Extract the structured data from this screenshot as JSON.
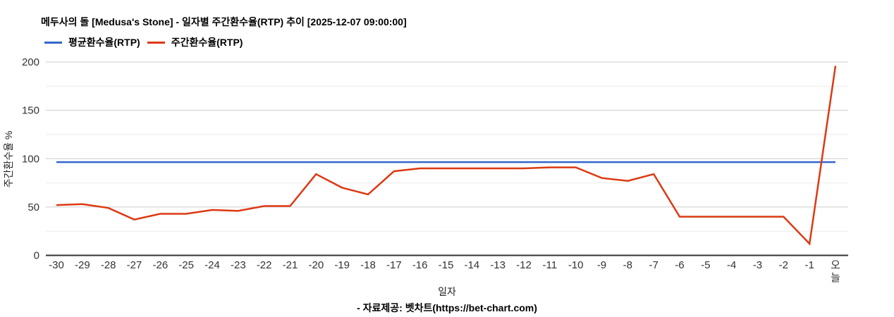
{
  "footer": {
    "source": "- 자료제공: 벳차트(https://bet-chart.com)"
  },
  "chart_data": {
    "type": "line",
    "title": "메두사의 돌 [Medusa's Stone] - 일자별 주간환수율(RTP) 추이 [2025-12-07 09:00:00]",
    "xlabel": "일자",
    "ylabel": "주간환수율 %",
    "legend_position": "top-left",
    "grid": true,
    "ylim": [
      0,
      200
    ],
    "yticks": [
      0,
      50,
      100,
      150,
      200
    ],
    "yticks_minor": [
      25,
      75,
      125,
      175
    ],
    "x": [
      "-30",
      "-29",
      "-28",
      "-27",
      "-26",
      "-25",
      "-24",
      "-23",
      "-22",
      "-21",
      "-20",
      "-19",
      "-18",
      "-17",
      "-16",
      "-15",
      "-14",
      "-13",
      "-12",
      "-11",
      "-10",
      "-9",
      "-8",
      "-7",
      "-6",
      "-5",
      "-4",
      "-3",
      "-2",
      "-1",
      "오늘"
    ],
    "series": [
      {
        "name": "평균환수율(RTP)",
        "color": "#3366cc",
        "values": [
          96.5,
          96.5,
          96.5,
          96.5,
          96.5,
          96.5,
          96.5,
          96.5,
          96.5,
          96.5,
          96.5,
          96.5,
          96.5,
          96.5,
          96.5,
          96.5,
          96.5,
          96.5,
          96.5,
          96.5,
          96.5,
          96.5,
          96.5,
          96.5,
          96.5,
          96.5,
          96.5,
          96.5,
          96.5,
          96.5,
          96.5
        ]
      },
      {
        "name": "주간환수율(RTP)",
        "color": "#dc3912",
        "values": [
          52,
          53,
          49,
          37,
          43,
          43,
          47,
          46,
          51,
          51,
          84,
          70,
          63,
          87,
          90,
          90,
          90,
          90,
          90,
          91,
          91,
          80,
          77,
          84,
          40,
          40,
          40,
          40,
          40,
          12,
          196
        ]
      }
    ],
    "colors": {
      "gridline": "#cccccc",
      "minor_gridline": "#ebebeb",
      "baseline": "#333333",
      "tick_label": "#333333",
      "axis_title": "#222222"
    }
  }
}
